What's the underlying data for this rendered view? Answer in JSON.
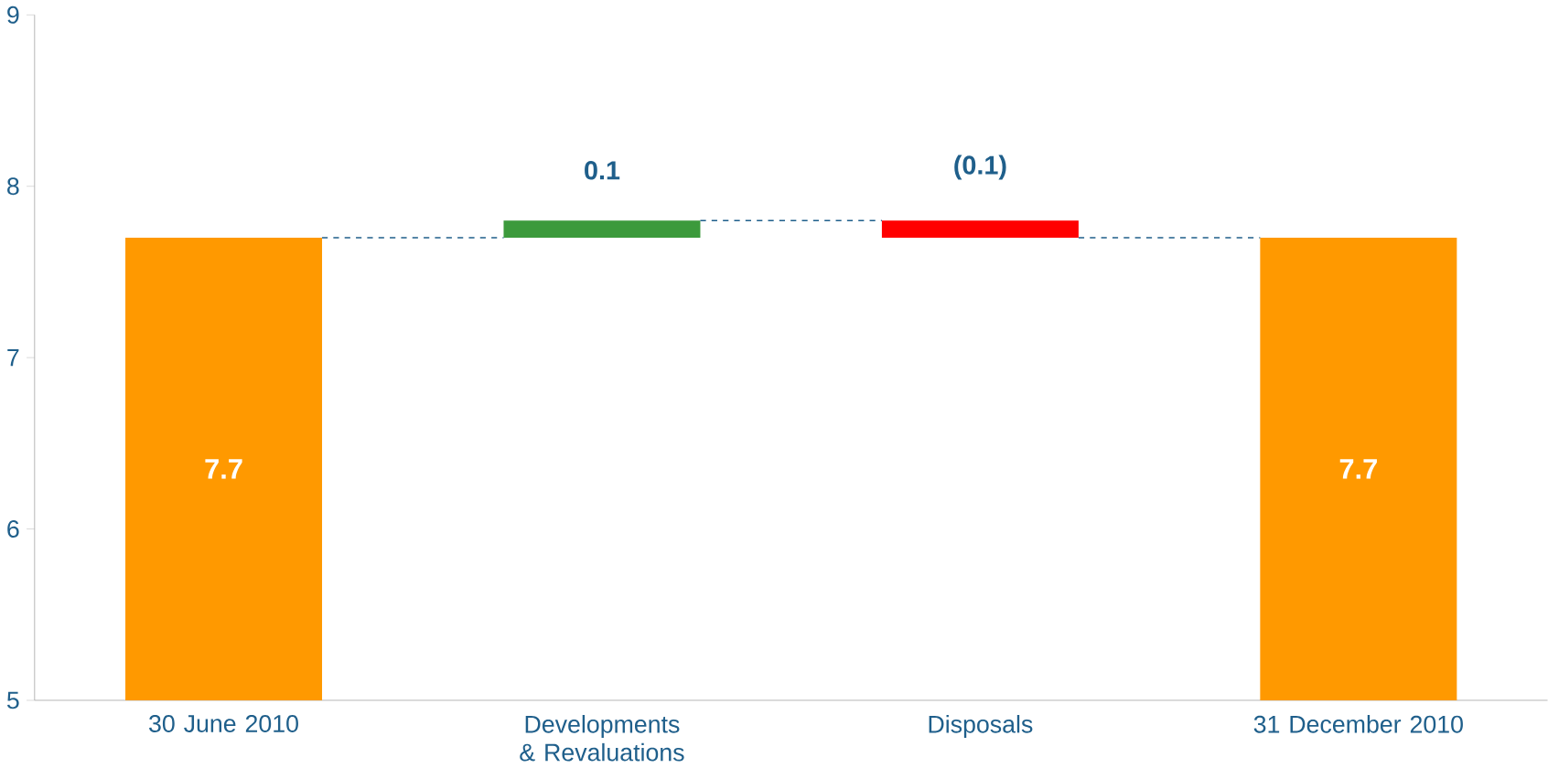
{
  "chart_data": {
    "type": "bar",
    "categories": [
      "30 June 2010",
      "Developments & Revaluations",
      "Disposals",
      "31 December 2010"
    ],
    "values": [
      7.7,
      0.1,
      -0.1,
      7.7
    ],
    "base": [
      null,
      7.7,
      7.8,
      null
    ],
    "colors": [
      "#ff9900",
      "#3c9a3c",
      "#ff0000",
      "#ff9900"
    ],
    "value_labels": [
      "7.7",
      "0.1",
      "(0.1)",
      "7.7"
    ],
    "ylim": [
      5,
      9
    ],
    "yticks": [
      5,
      6,
      7,
      8,
      9
    ],
    "grid": false,
    "legend": false
  }
}
